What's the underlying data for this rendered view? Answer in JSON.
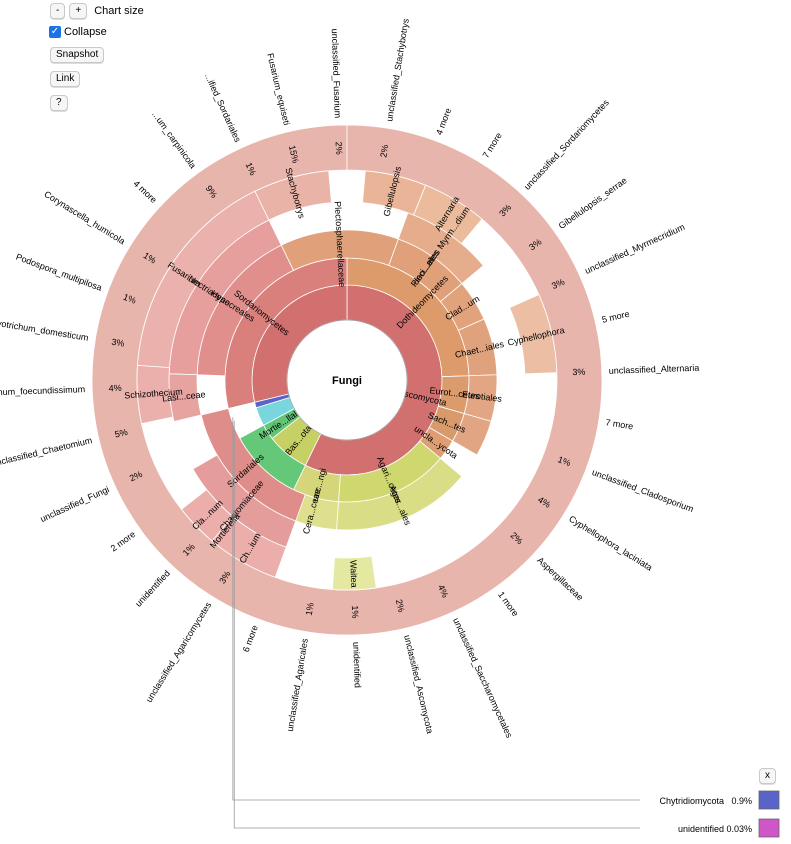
{
  "controls": {
    "minus_label": "-",
    "plus_label": "+",
    "chart_size_label": "Chart size",
    "collapse_label": "Collapse",
    "collapse_checked": true,
    "snapshot_label": "Snapshot",
    "link_label": "Link",
    "help_label": "?",
    "close_label": "x"
  },
  "chart_data": {
    "type": "sunburst",
    "root": "Fungi",
    "rings": [
      [
        {
          "name": "Ascomycota",
          "a0": 0,
          "a1": 206,
          "color": "#d2706f",
          "label": "Ascomycota"
        },
        {
          "name": "Basidiomycota",
          "a0": 206,
          "a1": 232,
          "color": "#c6d064",
          "label": "Bas...ota"
        },
        {
          "name": "Mortierellomycota",
          "a0": 232,
          "a1": 241.5,
          "color": "#62c475",
          "label": "Mortie...llales"
        },
        {
          "name": "unclassified_Fungi",
          "a0": 241.5,
          "a1": 253,
          "color": "#79d6dd",
          "label": ""
        },
        {
          "name": "Chytridiomycota",
          "a0": 253,
          "a1": 256.5,
          "color": "#5a64c8",
          "label": ""
        },
        {
          "name": "Ascomycota",
          "a0": 256.5,
          "a1": 360,
          "color": "#d2706f",
          "label": ""
        }
      ],
      [
        {
          "name": "Dothideomycetes",
          "a0": 0,
          "a1": 88,
          "color": "#dd9a6b",
          "label": "Dothideomycetes"
        },
        {
          "name": "Eurotiomycetes",
          "a0": 88,
          "a1": 106,
          "color": "#dc9b6d",
          "label": "Eurot...cetes"
        },
        {
          "name": "Saccharomycetes",
          "a0": 106,
          "a1": 120,
          "color": "#d99a6b",
          "label": "Sach...tes"
        },
        {
          "name": "unclassified_Ascomycota",
          "a0": 120,
          "a1": 130,
          "color": "#df9d74",
          "label": "uncla...ycota"
        },
        {
          "name": "Agaricomycetes",
          "a0": 130,
          "a1": 184,
          "color": "#cfd76f",
          "label": "Agari...cetes"
        },
        {
          "name": "unclassified_Basidiomycota",
          "a0": 184,
          "a1": 206,
          "color": "#d5d67a",
          "label": "unc...ngi"
        },
        {
          "name": "Mortierellales",
          "a0": 206,
          "a1": 241.5,
          "color": "#65c778",
          "label": ""
        },
        {
          "name": "Sordariomycetes",
          "a0": 256.5,
          "a1": 360,
          "color": "#d9807c",
          "label": "Sordariomycetes"
        }
      ],
      [
        {
          "name": "Pleosporales",
          "a0": 20,
          "a1": 50,
          "color": "#e0a07a",
          "label": "Pleo...ales"
        },
        {
          "name": "Cladosporiales",
          "a0": 50,
          "a1": 66,
          "color": "#e1a37c",
          "label": "Clad...um"
        },
        {
          "name": "Chaetothyriales",
          "a0": 66,
          "a1": 88,
          "color": "#e0a27d",
          "label": "Chaet...iales"
        },
        {
          "name": "Eurotiales",
          "a0": 88,
          "a1": 106,
          "color": "#e2a684",
          "label": "Eurotiales"
        },
        {
          "name": "Saccharomycetales",
          "a0": 106,
          "a1": 120,
          "color": "#e2a584",
          "label": ""
        },
        {
          "name": "Agaricales",
          "a0": 130,
          "a1": 184,
          "color": "#d9de86",
          "label": "Agar...ales"
        },
        {
          "name": "Ceratobasidiaceae",
          "a0": 184,
          "a1": 206,
          "color": "#dfe08d",
          "label": "Cera...ceae"
        },
        {
          "name": "Hypocreales",
          "a0": 272,
          "a1": 334,
          "color": "#e08f8c",
          "label": "Hypocreales"
        },
        {
          "name": "Sordariales",
          "a0": 200,
          "a1": 256.5,
          "color": "#df8d8a",
          "label": "Sordariales"
        },
        {
          "name": "Pleosporales",
          "a0": 334,
          "a1": 20,
          "color": "#e0a07a",
          "label": "Plectosphaerellaceae"
        }
      ],
      [
        {
          "name": "Mycosphaerellaceae",
          "a0": 20,
          "a1": 50,
          "color": "#e6ad8d",
          "label": "unci...etes Myrm...dium"
        },
        {
          "name": "Nectriaceae",
          "a0": 272,
          "a1": 334,
          "color": "#e69f9c",
          "label": "Nectriaceae"
        },
        {
          "name": "Chaetomiaceae",
          "a0": 200,
          "a1": 240,
          "color": "#e59d9b",
          "label": "Chaetomiaceae"
        },
        {
          "name": "Lasiosphaeriaceae",
          "a0": 256.5,
          "a1": 272,
          "color": "#e6a3a0",
          "label": "Lasi...ceae"
        }
      ],
      [
        {
          "name": "Fusarium",
          "a0": 272,
          "a1": 334,
          "color": "#ebb1ac",
          "label": "Fusarium"
        },
        {
          "name": "Stachybotrys",
          "a0": 334,
          "a1": 355,
          "color": "#eab3a8",
          "label": "Stachybotrys"
        },
        {
          "name": "Gibellulopsis",
          "a0": 5,
          "a1": 22,
          "color": "#e9b497",
          "label": "Gibellulopsis"
        },
        {
          "name": "Alternaria",
          "a0": 22,
          "a1": 40,
          "color": "#ebbb9c",
          "label": "Alternaria"
        },
        {
          "name": "Cyphellophora",
          "a0": 66,
          "a1": 88,
          "color": "#ecbea4",
          "label": "Cyphellophora"
        },
        {
          "name": "Waitea",
          "a0": 172,
          "a1": 184,
          "color": "#e5e8a0",
          "label": "Waitea"
        },
        {
          "name": "Mortierella",
          "a0": 206,
          "a1": 232,
          "color": "#74cf84",
          "label": "Mortierella"
        },
        {
          "name": "Chaetomium",
          "a0": 200,
          "a1": 220,
          "color": "#ecaeaa",
          "label": "Ch...ium"
        },
        {
          "name": "Cladorrhinum",
          "a0": 220,
          "a1": 232,
          "color": "#ebaeaa",
          "label": "Cla...num"
        },
        {
          "name": "Schizothecium",
          "a0": 258,
          "a1": 274,
          "color": "#ebb0ab",
          "label": "Schizothecium"
        }
      ]
    ],
    "leaf_labels": [
      {
        "text": "unclassified_Fusarium",
        "pct": "2%"
      },
      {
        "text": "unclassified_Stachybotrys",
        "pct": "2%"
      },
      {
        "text": "4 more",
        "pct": ""
      },
      {
        "text": "7 more",
        "pct": ""
      },
      {
        "text": "unclassified_Sordariomycetes",
        "pct": "3%"
      },
      {
        "text": "Gibellulopsis_serrae",
        "pct": "3%"
      },
      {
        "text": "unclassified_Myrmecridium",
        "pct": "3%"
      },
      {
        "text": "5 more",
        "pct": ""
      },
      {
        "text": "unclassified_Alternaria",
        "pct": "3%"
      },
      {
        "text": "7 more",
        "pct": ""
      },
      {
        "text": "unclassified_Cladosporium",
        "pct": "1%"
      },
      {
        "text": "Cyphellophora_laciniata",
        "pct": "4%"
      },
      {
        "text": "Aspergillaceae",
        "pct": "2%"
      },
      {
        "text": "1 more",
        "pct": ""
      },
      {
        "text": "unclassified_Saccharomycetales",
        "pct": "4%"
      },
      {
        "text": "unclassified_Ascomycota",
        "pct": "2%"
      },
      {
        "text": "unidentified",
        "pct": "1%"
      },
      {
        "text": "unclassified_Agaricales",
        "pct": "1%"
      },
      {
        "text": "6 more",
        "pct": ""
      },
      {
        "text": "unclassified_Agaricomycetes",
        "pct": "3%"
      },
      {
        "text": "unidentified",
        "pct": "1%"
      },
      {
        "text": "2 more",
        "pct": ""
      },
      {
        "text": "unclassified_Fungi",
        "pct": "2%"
      },
      {
        "text": "unclassified_Chaetomium",
        "pct": "5%"
      },
      {
        "text": "Cladorrhinum_foecundissimum",
        "pct": "4%"
      },
      {
        "text": "Botryotrichum_domesticum",
        "pct": "3%"
      },
      {
        "text": "Podospora_multipilosa",
        "pct": "1%"
      },
      {
        "text": "Corynascella_humicola",
        "pct": "1%"
      },
      {
        "text": "4 more",
        "pct": ""
      },
      {
        "text": "...um_carpinicola",
        "pct": "9%"
      },
      {
        "text": "...ified_Sordariales",
        "pct": "1%"
      },
      {
        "text": "Fusarium_equiseti",
        "pct": "15%"
      }
    ],
    "legend": [
      {
        "name": "Chytridiomycota",
        "pct": "0.9%",
        "color": "#5a64c8"
      },
      {
        "name": "unidentified",
        "pct": "0.03%",
        "color": "#d055c8"
      }
    ]
  }
}
